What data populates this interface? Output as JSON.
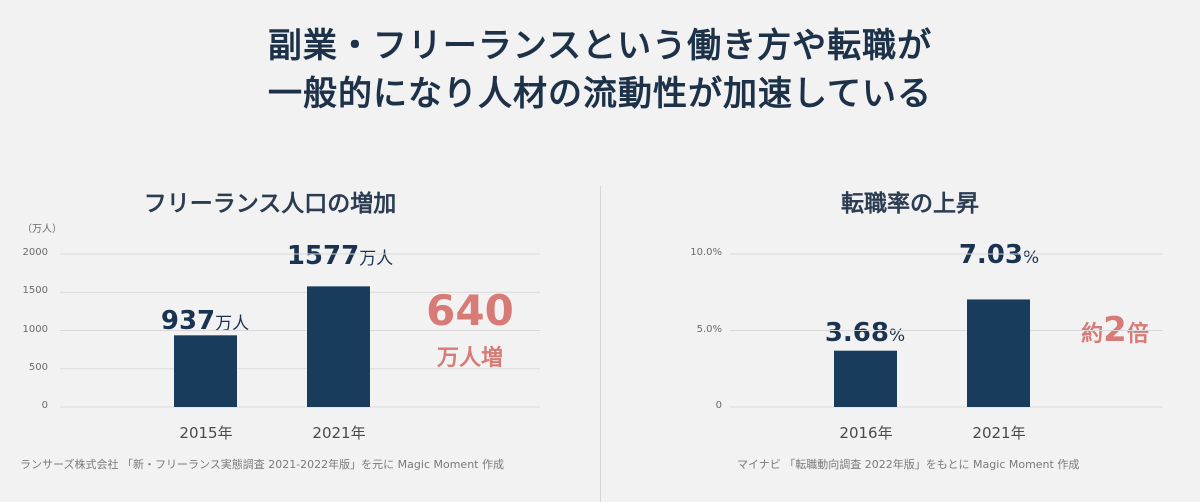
{
  "headline": {
    "line1": "副業・フリーランスという働き方や転職が",
    "line2": "一般的になり人材の流動性が加速している"
  },
  "colors": {
    "bar": "#1a3c5c",
    "accent": "#d87b76",
    "grid": "#d9d9d9"
  },
  "chart_data": [
    {
      "type": "bar",
      "title": "フリーランス人口の増加",
      "unit_label": "（万人）",
      "categories": [
        "2015年",
        "2021年"
      ],
      "values": [
        937,
        1577
      ],
      "value_labels": [
        {
          "num": "937",
          "suffix": "万人"
        },
        {
          "num": "1577",
          "suffix": "万人"
        }
      ],
      "ylim": [
        0,
        2000
      ],
      "yticks": [
        "0",
        "500",
        "1000",
        "1500",
        "2000"
      ],
      "annotation": {
        "line1": "640",
        "line2": "万人増"
      },
      "source": "ランサーズ株式会社 「新・フリーランス実態調査 2021-2022年版」を元に Magic Moment 作成"
    },
    {
      "type": "bar",
      "title": "転職率の上昇",
      "categories": [
        "2016年",
        "2021年"
      ],
      "values": [
        3.68,
        7.03
      ],
      "value_labels": [
        {
          "num": "3.68",
          "suffix": "%"
        },
        {
          "num": "7.03",
          "suffix": "%"
        }
      ],
      "ylim": [
        0,
        10
      ],
      "yticks": [
        "0",
        "5.0%",
        "10.0%"
      ],
      "annotation": {
        "prefix": "約",
        "num": "2",
        "suffix": "倍"
      },
      "source": "マイナビ 「転職動向調査 2022年版」をもとに Magic Moment 作成"
    }
  ]
}
